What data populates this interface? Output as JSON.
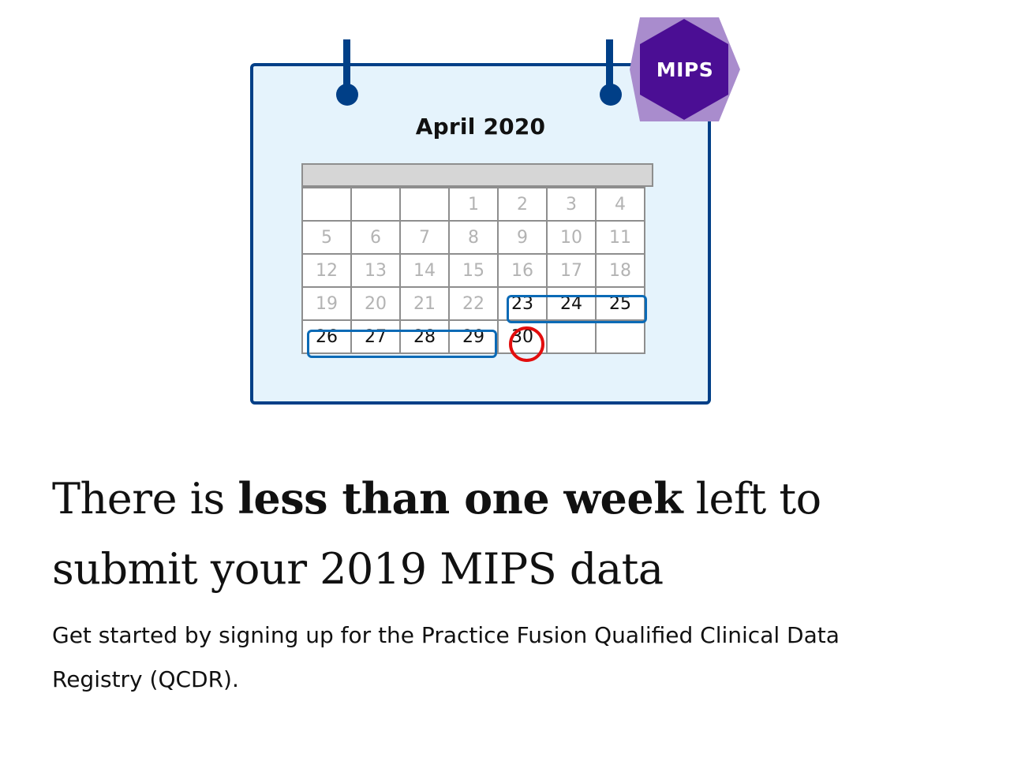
{
  "calendar": {
    "month": "April 2020",
    "weeks": [
      [
        "",
        "",
        "",
        "1",
        "2",
        "3",
        "4"
      ],
      [
        "5",
        "6",
        "7",
        "8",
        "9",
        "10",
        "11"
      ],
      [
        "12",
        "13",
        "14",
        "15",
        "16",
        "17",
        "18"
      ],
      [
        "19",
        "20",
        "21",
        "22",
        "23",
        "24",
        "25"
      ],
      [
        "26",
        "27",
        "28",
        "29",
        "30",
        "",
        ""
      ]
    ],
    "highlighted_days": [
      "23",
      "24",
      "25",
      "26",
      "27",
      "28",
      "29"
    ],
    "deadline_day": "30"
  },
  "badge": {
    "label": "MIPS",
    "color": "#4b0e94",
    "outline_color": "#a98ccd"
  },
  "headline": {
    "before": "There is ",
    "bold": "less than one week",
    "after": " left to submit your 2019 MIPS data"
  },
  "subtext": "Get started by signing up for the Practice Fusion Qualified Clinical Data Registry (QCDR).",
  "colors": {
    "calendar_border": "#003f87",
    "calendar_bg": "#e5f3fc",
    "highlight": "#0a6ab6",
    "deadline": "#e30d0d"
  }
}
